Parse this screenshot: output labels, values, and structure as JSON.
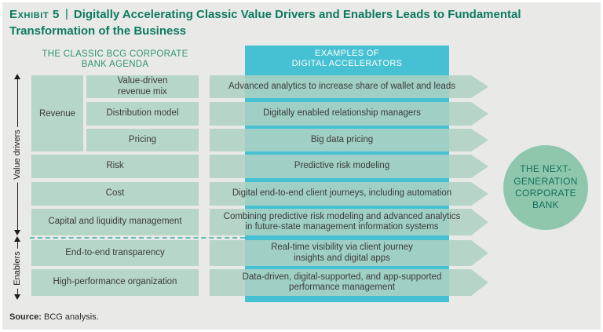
{
  "title": {
    "exhibit": "Exhibit 5",
    "divider": "|",
    "text": "Digitally Accelerating Classic Value Drivers and Enablers Leads to Fundamental Transformation of the Business"
  },
  "left_panel": {
    "header": "THE CLASSIC BCG CORPORATE BANK AGENDA",
    "axis_value_drivers": "Value drivers",
    "axis_enablers": "Enablers",
    "revenue_group": {
      "label": "Revenue",
      "items": [
        "Value-driven\nrevenue mix",
        "Distribution model",
        "Pricing"
      ]
    },
    "rows": [
      "Risk",
      "Cost",
      "Capital and liquidity management"
    ],
    "enabler_rows": [
      "End-to-end transparency",
      "High-performance organization"
    ]
  },
  "right_panel": {
    "header": "EXAMPLES OF\nDIGITAL ACCELERATORS",
    "accelerators": [
      "Advanced analytics to increase share of wallet and leads",
      "Digitally enabled relationship managers",
      "Big data pricing",
      "Predictive risk modeling",
      "Digital end-to-end client journeys, including automation",
      "Combining predictive risk modeling and advanced analytics\nin future-state management information systems",
      "Real-time visibility via client journey\ninsights and digital apps",
      "Data-driven, digital-supported, and app-supported\nperformance management"
    ]
  },
  "circle": {
    "text": "THE NEXT-\nGENERATION\nCORPORATE\nBANK"
  },
  "source": {
    "label": "Source:",
    "text": " BCG analysis."
  },
  "colors": {
    "title_green": "#0d7a5f",
    "header_green": "#2d9571",
    "box_green": "#b6d6c7",
    "accent_cyan": "#46c1d3",
    "circle_green": "#8fc7ad",
    "circle_text": "#156f5a",
    "background": "#e9e9e7"
  }
}
